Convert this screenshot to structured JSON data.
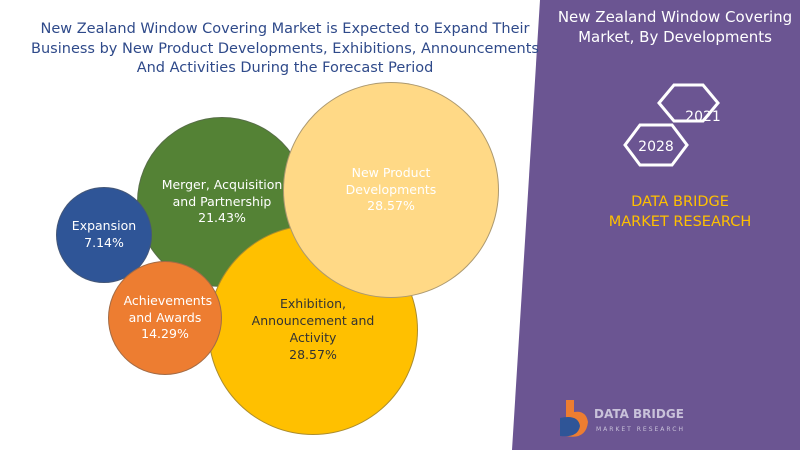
{
  "chart_data": {
    "type": "bubble",
    "title": "New Zealand Window Covering Market is Expected to Expand Their Business by New Product Developments, Exhibitions, Announcements And Activities During the Forecast Period",
    "categories": [
      "Expansion",
      "Merger, Acquisition and Partnership",
      "New Product Developments",
      "Exhibition, Announcement and Activity",
      "Achievements and Awards"
    ],
    "values": [
      7.14,
      21.43,
      28.57,
      28.57,
      14.29
    ],
    "value_labels": [
      "7.14%",
      "21.43%",
      "28.57%",
      "28.57%",
      "14.29%"
    ],
    "colors": [
      "#2f5597",
      "#548235",
      "#ffd986",
      "#ffc000",
      "#ed7d31"
    ]
  },
  "side_panel": {
    "title": "New Zealand Window Covering Market, By Developments",
    "years": [
      "2021",
      "2028"
    ],
    "brand": "DATA BRIDGE MARKET RESEARCH",
    "logo": {
      "name": "DATA BRIDGE",
      "tagline": "MARKET RESEARCH"
    }
  }
}
